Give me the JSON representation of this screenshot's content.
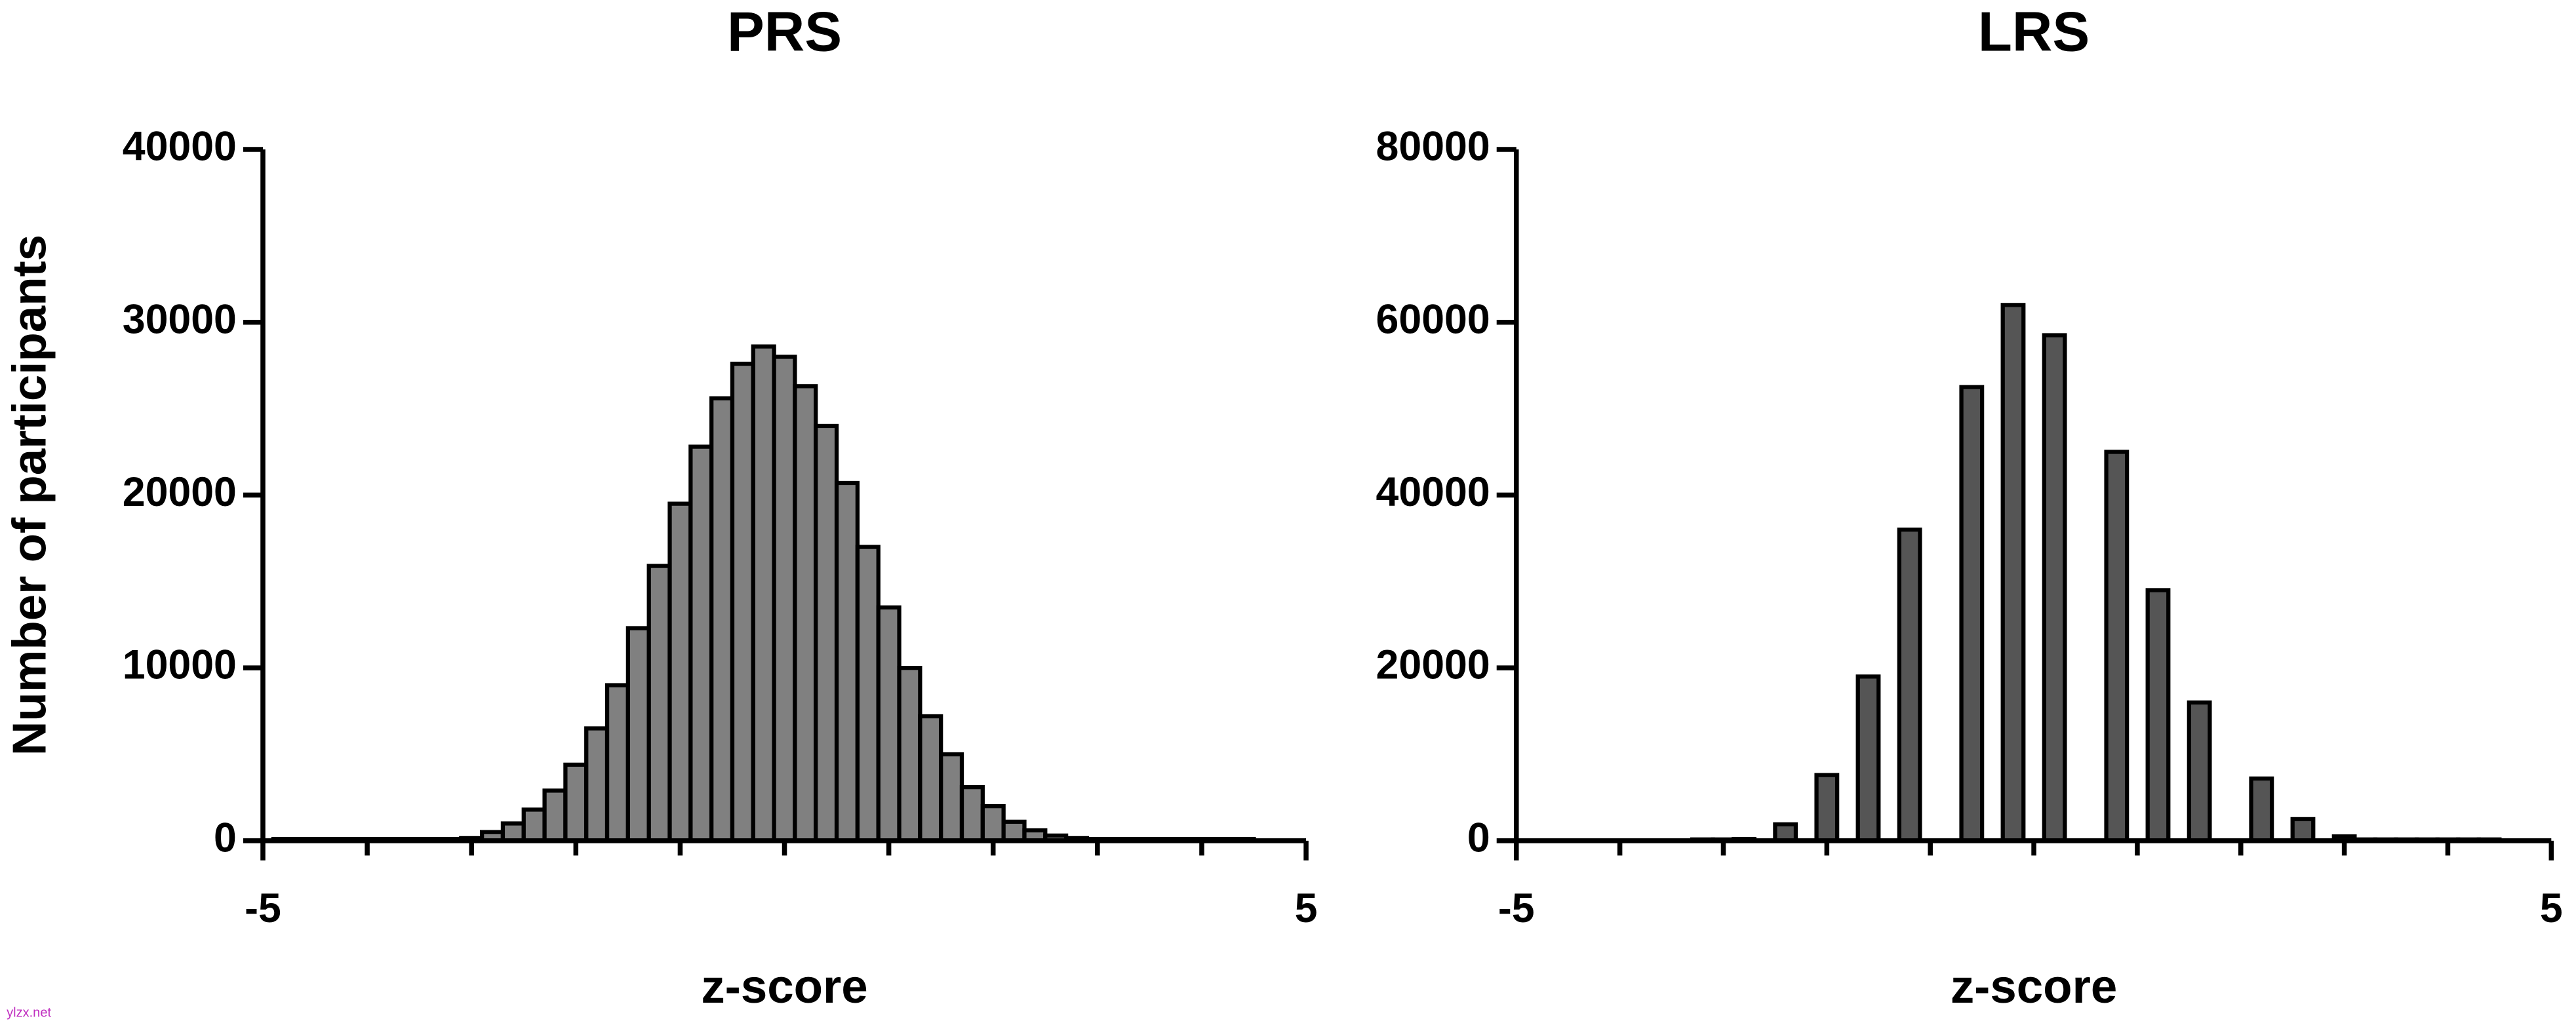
{
  "chart_data": [
    {
      "type": "histogram",
      "title": "PRS",
      "xlabel": "z-score",
      "ylabel": "Number of participants",
      "bins": [
        -4.9,
        -4.7,
        -4.5,
        -4.3,
        -4.1,
        -3.9,
        -3.7,
        -3.5,
        -3.3,
        -3.1,
        -2.9,
        -2.7,
        -2.5,
        -2.3,
        -2.1,
        -1.9,
        -1.7,
        -1.5,
        -1.3,
        -1.1,
        -0.9,
        -0.7,
        -0.5,
        -0.3,
        -0.1,
        0.1,
        0.3,
        0.5,
        0.7,
        0.9,
        1.1,
        1.3,
        1.5,
        1.7,
        1.9,
        2.1,
        2.3,
        2.5,
        2.7,
        2.9,
        3.1,
        3.3,
        3.5,
        3.7,
        3.9,
        4.1,
        4.3,
        4.5
      ],
      "values": [
        100,
        100,
        100,
        100,
        100,
        100,
        100,
        100,
        100,
        150,
        500,
        1000,
        1800,
        2900,
        4400,
        6500,
        9000,
        12300,
        15900,
        19500,
        22800,
        25600,
        27600,
        28600,
        28000,
        26300,
        24000,
        20700,
        17000,
        13500,
        10000,
        7200,
        5000,
        3100,
        2000,
        1100,
        600,
        300,
        150,
        100,
        100,
        100,
        100,
        100,
        100,
        100,
        100
      ],
      "color": "#808080",
      "xlim": [
        -5,
        5
      ],
      "xticks": [
        -5,
        5
      ],
      "xminorticks": [
        -4,
        -3,
        -2,
        -1,
        0,
        1,
        2,
        3,
        4
      ],
      "ylim": [
        0,
        40000
      ],
      "yticks": [
        0,
        10000,
        20000,
        30000,
        40000
      ]
    },
    {
      "type": "histogram",
      "title": "LRS",
      "xlabel": "z-score",
      "bins": [
        -3.3,
        -3.1,
        -2.9,
        -2.7,
        -2.5,
        -2.3,
        -2.1,
        -1.9,
        -1.7,
        -1.5,
        -1.3,
        -1.1,
        -0.9,
        -0.7,
        -0.5,
        -0.3,
        -0.1,
        0.1,
        0.3,
        0.5,
        0.7,
        0.9,
        1.1,
        1.3,
        1.5,
        1.7,
        1.9,
        2.1,
        2.3,
        2.5,
        2.7,
        2.9,
        3.1,
        3.3,
        3.5,
        3.7,
        3.9,
        4.1,
        4.3,
        4.5
      ],
      "values": [
        150,
        150,
        200,
        0,
        1900,
        0,
        7600,
        0,
        19000,
        0,
        36000,
        0,
        0,
        52500,
        0,
        62000,
        0,
        58500,
        0,
        0,
        45000,
        0,
        29000,
        0,
        16000,
        0,
        0,
        7200,
        0,
        2500,
        0,
        500,
        150,
        150,
        150,
        150,
        150,
        150,
        150
      ],
      "color": "#555555",
      "xlim": [
        -5,
        5
      ],
      "xticks": [
        -5,
        5
      ],
      "xminorticks": [
        -4,
        -3,
        -2,
        -1,
        0,
        1,
        2,
        3,
        4
      ],
      "ylim": [
        0,
        80000
      ],
      "yticks": [
        0,
        20000,
        40000,
        60000,
        80000
      ]
    }
  ],
  "watermark": "ylzx.net"
}
